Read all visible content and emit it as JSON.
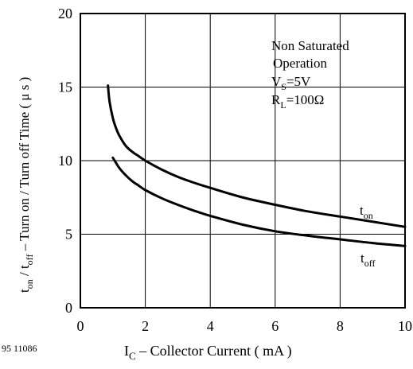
{
  "figure_code": "95 11086",
  "chart_data": {
    "type": "line",
    "xlabel": {
      "main": "I",
      "sub": "C",
      "rest": " – Collector Current ( mA )"
    },
    "ylabel": {
      "p1": "t",
      "p1_sub": "on",
      "p2": " / t",
      "p2_sub": "off",
      "p3": "  – Turn on / Turn off Time ( μ s )"
    },
    "xlim": [
      0,
      10
    ],
    "ylim": [
      0,
      20
    ],
    "x_ticks": [
      0,
      2,
      4,
      6,
      8,
      10
    ],
    "y_ticks": [
      0,
      5,
      10,
      15,
      20
    ],
    "grid": true,
    "annotation": {
      "line1": "Non Saturated",
      "line2": "Operation",
      "line3_main": "V",
      "line3_sub": "S",
      "line3_rest": "=5V",
      "line4_main": "R",
      "line4_sub": "L",
      "line4_rest": "=100Ω"
    },
    "series": [
      {
        "name": "t_on",
        "label_main": "t",
        "label_sub": "on",
        "x": [
          0.85,
          0.9,
          1.0,
          1.1,
          1.2,
          1.4,
          1.6,
          1.8,
          2.0,
          2.5,
          3.0,
          3.5,
          4.0,
          5.0,
          6.0,
          7.0,
          8.0,
          9.0,
          10.0
        ],
        "y": [
          15.1,
          14.0,
          12.9,
          12.2,
          11.7,
          11.0,
          10.6,
          10.3,
          10.0,
          9.4,
          8.9,
          8.5,
          8.15,
          7.5,
          7.0,
          6.55,
          6.2,
          5.85,
          5.5
        ]
      },
      {
        "name": "t_off",
        "label_main": "t",
        "label_sub": "off",
        "x": [
          1.0,
          1.2,
          1.4,
          1.6,
          1.8,
          2.0,
          2.5,
          3.0,
          3.5,
          4.0,
          5.0,
          6.0,
          7.0,
          8.0,
          9.0,
          10.0
        ],
        "y": [
          10.2,
          9.5,
          9.0,
          8.6,
          8.3,
          8.0,
          7.45,
          7.0,
          6.6,
          6.25,
          5.65,
          5.2,
          4.9,
          4.65,
          4.4,
          4.2
        ]
      }
    ],
    "colors": {
      "curve": "#000000",
      "grid": "#000000",
      "frame": "#000000"
    }
  }
}
